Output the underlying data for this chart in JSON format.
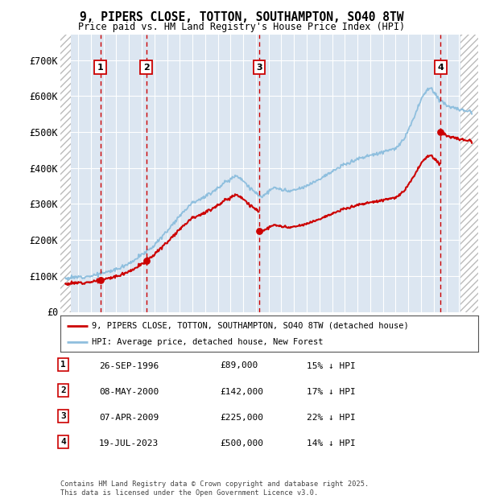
{
  "title_line1": "9, PIPERS CLOSE, TOTTON, SOUTHAMPTON, SO40 8TW",
  "title_line2": "Price paid vs. HM Land Registry's House Price Index (HPI)",
  "ylim": [
    0,
    750000
  ],
  "xlim_start": 1993.6,
  "xlim_end": 2026.5,
  "hatch_left_end": 1994.42,
  "hatch_right_start": 2025.08,
  "yticks": [
    0,
    100000,
    200000,
    300000,
    400000,
    500000,
    600000,
    700000
  ],
  "ytick_labels": [
    "£0",
    "£100K",
    "£200K",
    "£300K",
    "£400K",
    "£500K",
    "£600K",
    "£700K"
  ],
  "background_color": "#ffffff",
  "plot_bg_color": "#dce6f1",
  "grid_color": "#ffffff",
  "transaction_color": "#cc0000",
  "hpi_color": "#8fbfde",
  "dashed_line_color": "#cc0000",
  "transactions": [
    {
      "date": 1996.74,
      "price": 89000,
      "label": "1"
    },
    {
      "date": 2000.36,
      "price": 142000,
      "label": "2"
    },
    {
      "date": 2009.27,
      "price": 225000,
      "label": "3"
    },
    {
      "date": 2023.54,
      "price": 500000,
      "label": "4"
    }
  ],
  "annotation_labels": [
    {
      "label": "1",
      "x": 1996.74
    },
    {
      "label": "2",
      "x": 2000.36
    },
    {
      "label": "3",
      "x": 2009.27
    },
    {
      "label": "4",
      "x": 2023.54
    }
  ],
  "legend_entries": [
    {
      "label": "9, PIPERS CLOSE, TOTTON, SOUTHAMPTON, SO40 8TW (detached house)",
      "color": "#cc0000"
    },
    {
      "label": "HPI: Average price, detached house, New Forest",
      "color": "#8fbfde"
    }
  ],
  "table_rows": [
    {
      "num": "1",
      "date": "26-SEP-1996",
      "price": "£89,000",
      "hpi": "15% ↓ HPI"
    },
    {
      "num": "2",
      "date": "08-MAY-2000",
      "price": "£142,000",
      "hpi": "17% ↓ HPI"
    },
    {
      "num": "3",
      "date": "07-APR-2009",
      "price": "£225,000",
      "hpi": "22% ↓ HPI"
    },
    {
      "num": "4",
      "date": "19-JUL-2023",
      "price": "£500,000",
      "hpi": "14% ↓ HPI"
    }
  ],
  "footer": "Contains HM Land Registry data © Crown copyright and database right 2025.\nThis data is licensed under the Open Government Licence v3.0."
}
